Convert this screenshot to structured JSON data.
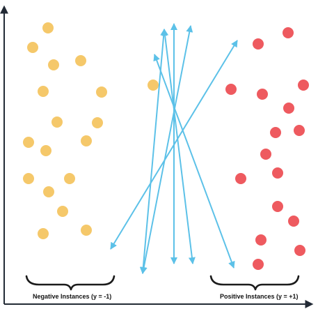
{
  "colors": {
    "negative": "#f5c86a",
    "positive": "#ee5a5f",
    "arrow": "#5cc1e8",
    "axis": "#222a35",
    "brace": "#1b1b1b"
  },
  "labels": {
    "negative": "Negative Instances (y = -1)",
    "positive": "Positive Instances (y = +1)"
  }
}
